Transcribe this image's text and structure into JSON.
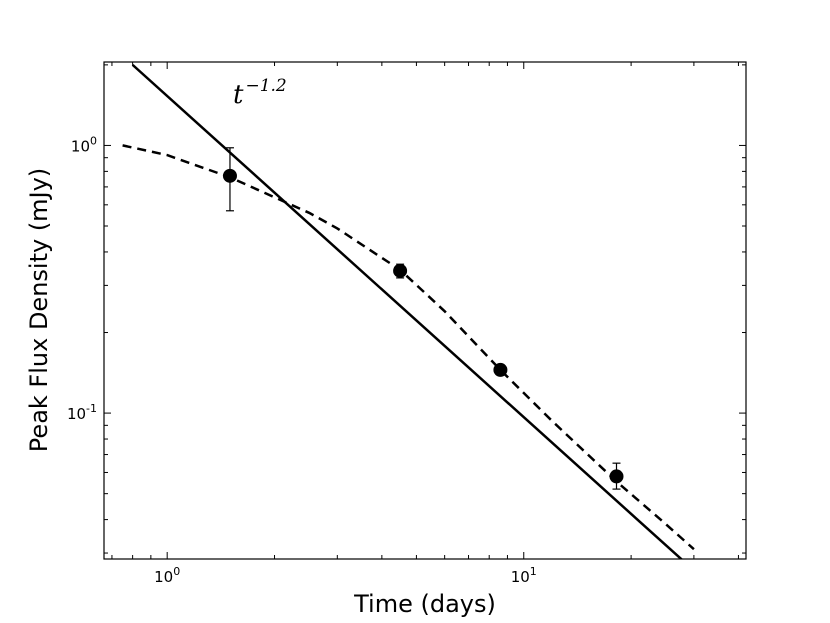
{
  "chart_data": {
    "type": "scatter",
    "xlabel": "Time (days)",
    "ylabel": "Peak Flux Density (mJy)",
    "xscale": "log",
    "yscale": "log",
    "xlim": [
      0.665,
      42
    ],
    "ylim": [
      0.0285,
      2.05
    ],
    "grid": false,
    "x_ticks": [
      {
        "base": "10",
        "exp": "0",
        "value": 1
      },
      {
        "base": "10",
        "exp": "1",
        "value": 10
      }
    ],
    "y_ticks": [
      {
        "base": "10",
        "exp": "0",
        "value": 1
      },
      {
        "base": "10",
        "exp": "-1",
        "value": 0.1
      }
    ],
    "annotation": {
      "base": "t",
      "exp": "−1.2"
    },
    "points": [
      {
        "x": 1.5,
        "y": 0.77,
        "yerr_low": 0.57,
        "yerr_high": 0.98
      },
      {
        "x": 4.5,
        "y": 0.34,
        "yerr_low": 0.32,
        "yerr_high": 0.36
      },
      {
        "x": 8.6,
        "y": 0.145,
        "yerr_low": 0.14,
        "yerr_high": 0.15
      },
      {
        "x": 18.2,
        "y": 0.058,
        "yerr_low": 0.052,
        "yerr_high": 0.065
      }
    ],
    "power_law": {
      "slope": -1.2,
      "amplitude": 1.53,
      "x_range": [
        0.8,
        42
      ]
    },
    "model_curve": {
      "x": [
        0.75,
        1.0,
        1.5,
        2.0,
        2.5,
        3.0,
        4.0,
        4.5,
        6.0,
        8.6,
        12.0,
        18.2,
        25.0,
        30.0
      ],
      "y": [
        1.0,
        0.92,
        0.76,
        0.64,
        0.56,
        0.49,
        0.38,
        0.343,
        0.24,
        0.145,
        0.0935,
        0.0555,
        0.0385,
        0.031
      ]
    }
  }
}
